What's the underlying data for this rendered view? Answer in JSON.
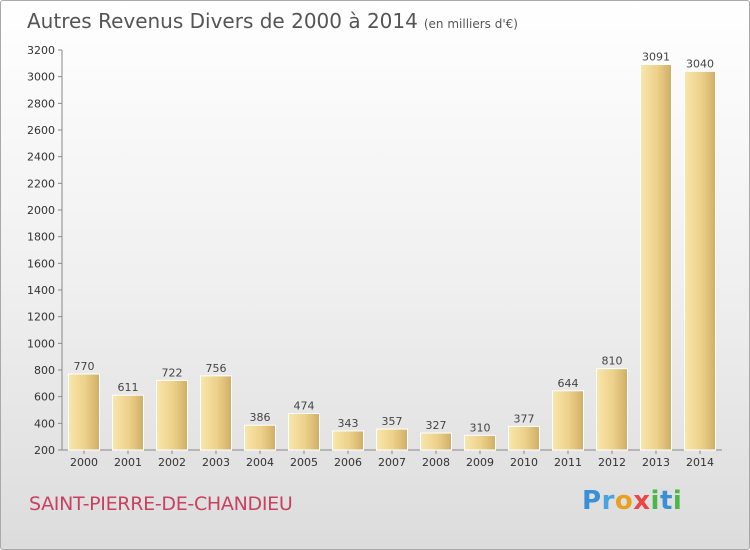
{
  "header": {
    "title": "Autres Revenus Divers de 2000 à 2014",
    "unit": "(en milliers d'€)"
  },
  "footer": {
    "place": "SAINT-PIERRE-DE-CHANDIEU",
    "logo_text": "Proxiti"
  },
  "colors": {
    "bar_light": "#f7e1a0",
    "bar_dark": "#d2b36c",
    "axis": "#888888",
    "place": "#c8425f"
  },
  "chart_data": {
    "type": "bar",
    "categories": [
      "2000",
      "2001",
      "2002",
      "2003",
      "2004",
      "2005",
      "2006",
      "2007",
      "2008",
      "2009",
      "2010",
      "2011",
      "2012",
      "2013",
      "2014"
    ],
    "values": [
      770,
      611,
      722,
      756,
      386,
      474,
      343,
      357,
      327,
      310,
      377,
      644,
      810,
      3091,
      3040
    ],
    "ylim": [
      200,
      3200
    ],
    "yticks": [
      200,
      400,
      600,
      800,
      1000,
      1200,
      1400,
      1600,
      1800,
      2000,
      2200,
      2400,
      2600,
      2800,
      3000,
      3200
    ],
    "grid": false,
    "title": "Autres Revenus Divers de 2000 à 2014",
    "xlabel": "",
    "ylabel": ""
  }
}
